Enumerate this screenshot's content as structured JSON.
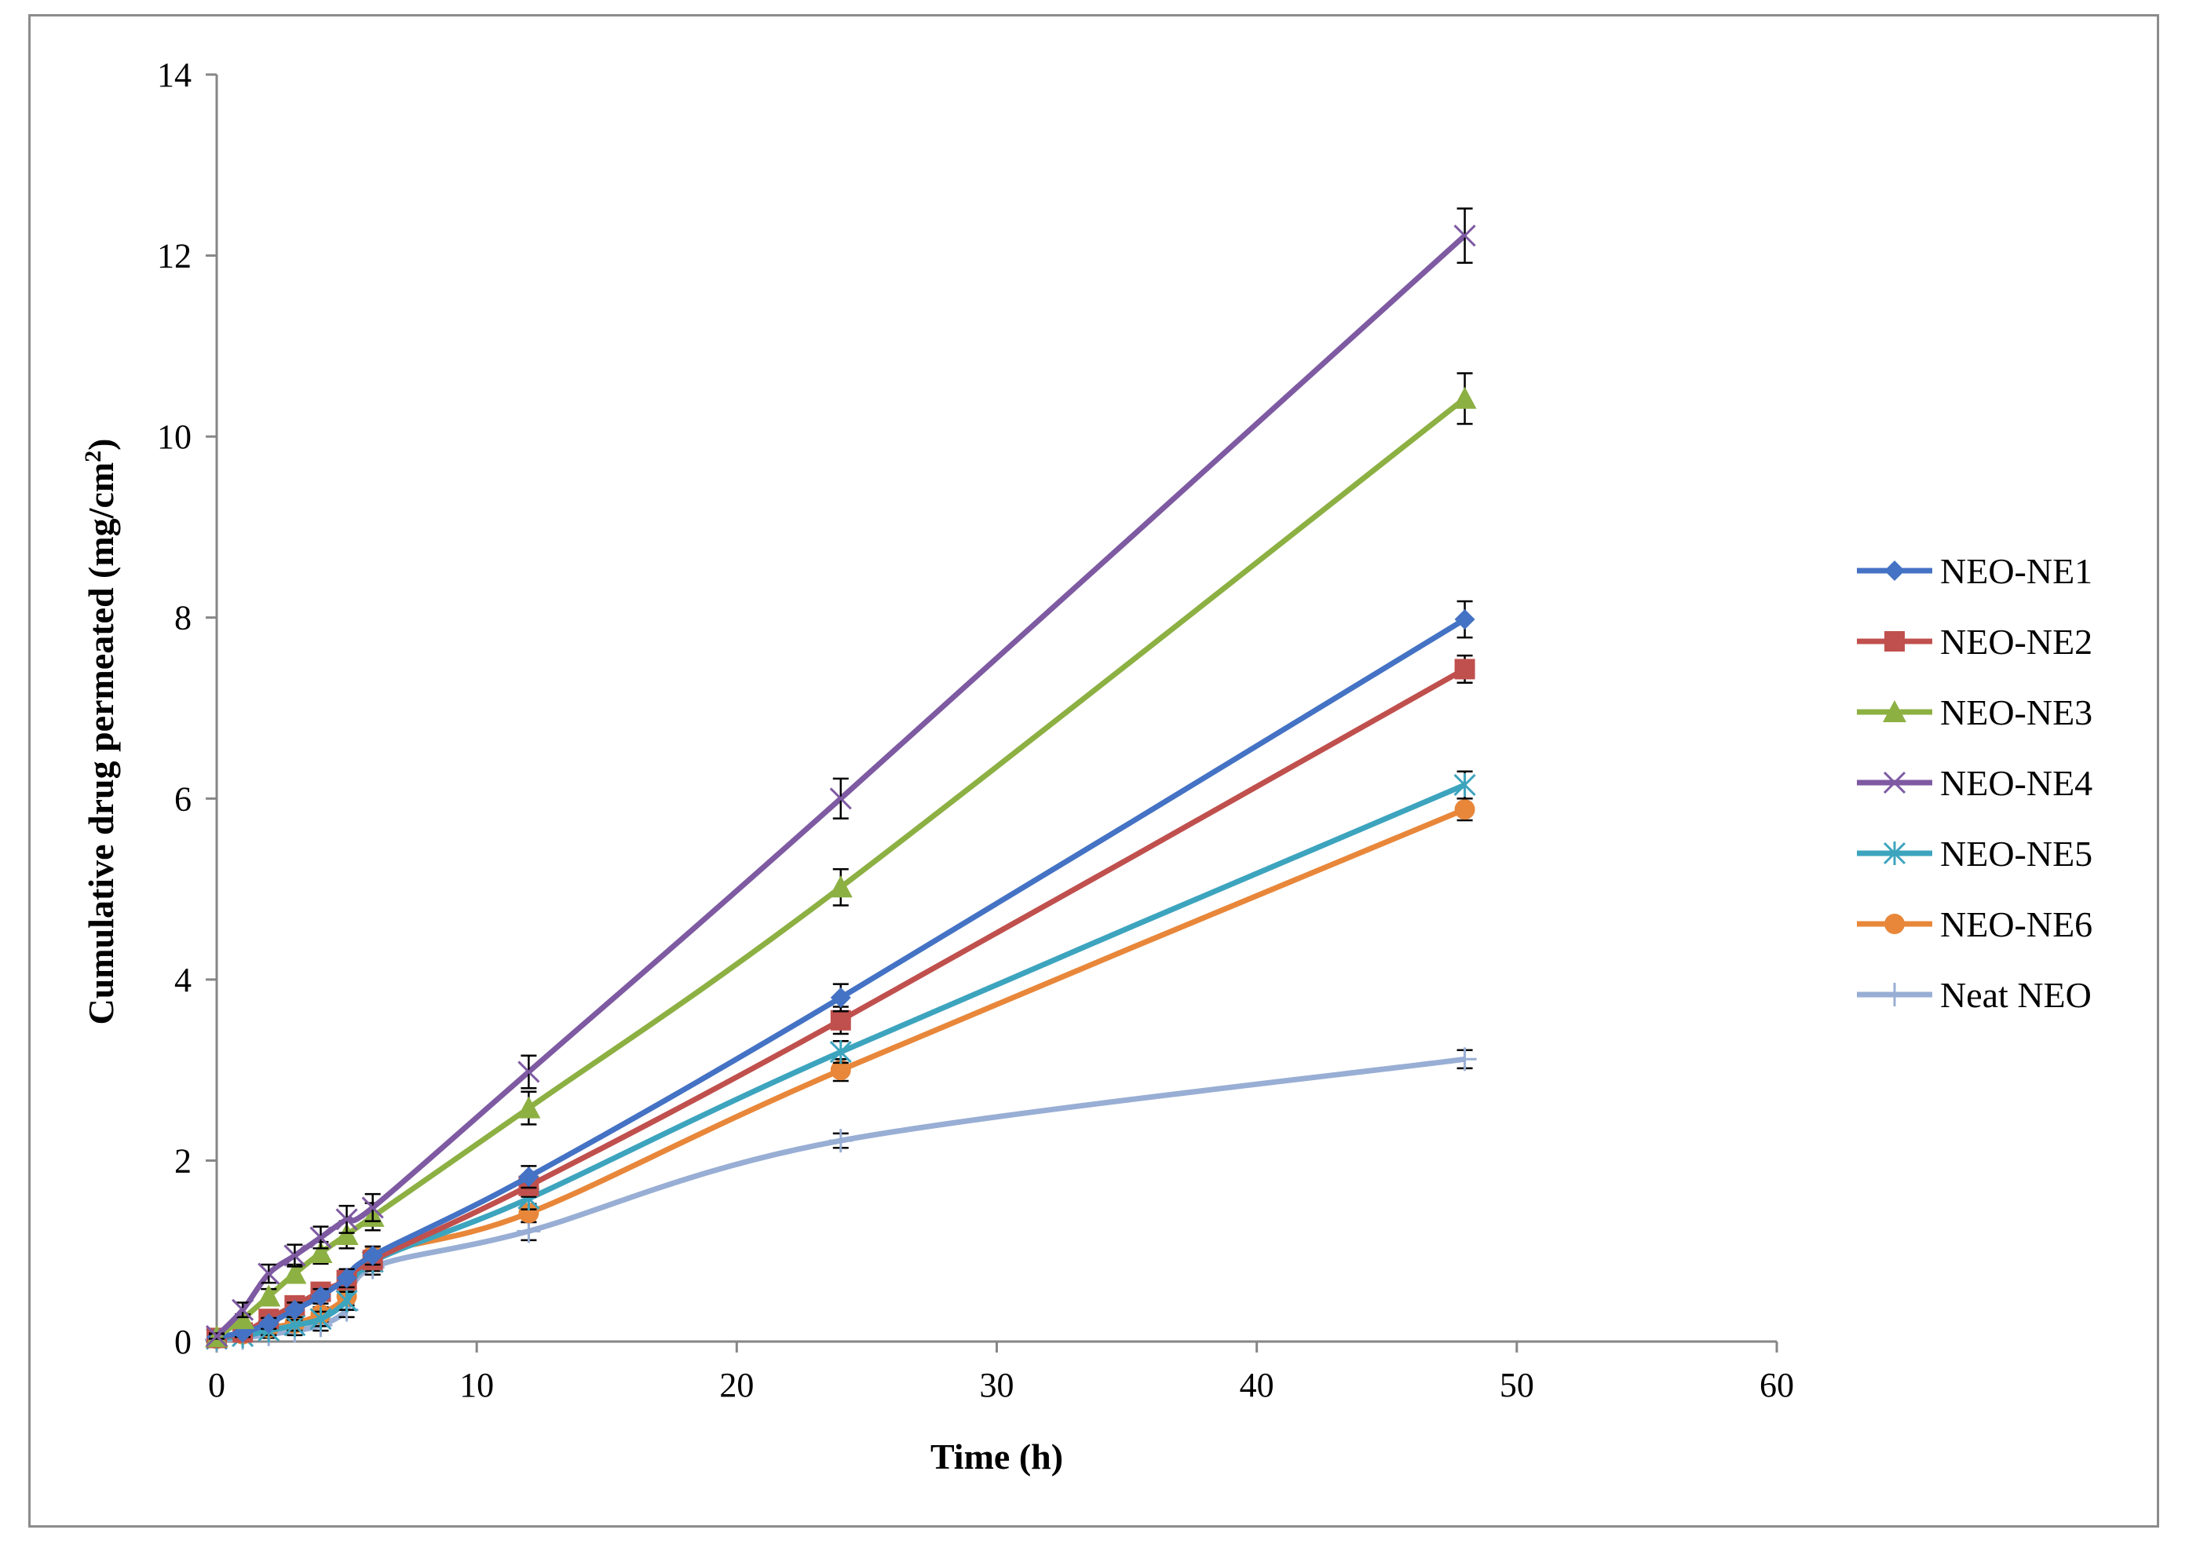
{
  "chart_data": {
    "type": "line",
    "title": "",
    "xlabel": "Time (h)",
    "ylabel_main": "Cumulative  drug  permeated  (mg/cm",
    "ylabel_sup": "2",
    "ylabel_end": ")",
    "xlim": [
      0,
      60
    ],
    "ylim": [
      0,
      14
    ],
    "xticks": [
      0,
      10,
      20,
      30,
      40,
      50,
      60
    ],
    "yticks": [
      0,
      2,
      4,
      6,
      8,
      10,
      12,
      14
    ],
    "grid": false,
    "legend_position": "right",
    "x": [
      0,
      1,
      2,
      3,
      4,
      5,
      6,
      12,
      24,
      48
    ],
    "series": [
      {
        "name": "NEO-NE1",
        "color": "#4472C4",
        "marker": "diamond",
        "values": [
          0.05,
          0.1,
          0.2,
          0.35,
          0.5,
          0.7,
          0.95,
          1.82,
          3.8,
          7.98
        ],
        "errors": [
          0.03,
          0.05,
          0.06,
          0.08,
          0.08,
          0.1,
          0.1,
          0.12,
          0.15,
          0.2
        ]
      },
      {
        "name": "NEO-NE2",
        "color": "#C0504D",
        "marker": "square",
        "values": [
          0.04,
          0.1,
          0.25,
          0.4,
          0.55,
          0.68,
          0.9,
          1.72,
          3.55,
          7.43
        ],
        "errors": [
          0.03,
          0.05,
          0.06,
          0.08,
          0.08,
          0.1,
          0.1,
          0.12,
          0.15,
          0.15
        ]
      },
      {
        "name": "NEO-NE3",
        "color": "#8DB043",
        "marker": "triangle",
        "values": [
          0.05,
          0.25,
          0.5,
          0.75,
          0.98,
          1.18,
          1.38,
          2.58,
          5.02,
          10.42
        ],
        "errors": [
          0.03,
          0.05,
          0.08,
          0.1,
          0.12,
          0.15,
          0.15,
          0.18,
          0.2,
          0.28
        ]
      },
      {
        "name": "NEO-NE4",
        "color": "#7E5AA2",
        "marker": "x",
        "values": [
          0.06,
          0.35,
          0.75,
          0.95,
          1.15,
          1.35,
          1.48,
          2.98,
          6.0,
          12.22
        ],
        "errors": [
          0.03,
          0.08,
          0.1,
          0.12,
          0.12,
          0.15,
          0.15,
          0.18,
          0.22,
          0.3
        ]
      },
      {
        "name": "NEO-NE5",
        "color": "#3DA4BE",
        "marker": "asterisk",
        "values": [
          0.03,
          0.06,
          0.12,
          0.18,
          0.25,
          0.45,
          0.88,
          1.58,
          3.2,
          6.15
        ],
        "errors": [
          0.02,
          0.03,
          0.05,
          0.06,
          0.08,
          0.1,
          0.1,
          0.12,
          0.12,
          0.15
        ]
      },
      {
        "name": "NEO-NE6",
        "color": "#E8873A",
        "marker": "circle",
        "values": [
          0.03,
          0.08,
          0.15,
          0.2,
          0.3,
          0.5,
          0.95,
          1.42,
          3.0,
          5.88
        ],
        "errors": [
          0.02,
          0.03,
          0.05,
          0.06,
          0.08,
          0.1,
          0.1,
          0.1,
          0.12,
          0.12
        ]
      },
      {
        "name": "Neat NEO",
        "color": "#98AED4",
        "marker": "plus",
        "values": [
          0.02,
          0.04,
          0.08,
          0.12,
          0.18,
          0.35,
          0.82,
          1.22,
          2.22,
          3.12
        ],
        "errors": [
          0.02,
          0.03,
          0.04,
          0.05,
          0.06,
          0.08,
          0.08,
          0.1,
          0.08,
          0.1
        ]
      }
    ]
  }
}
